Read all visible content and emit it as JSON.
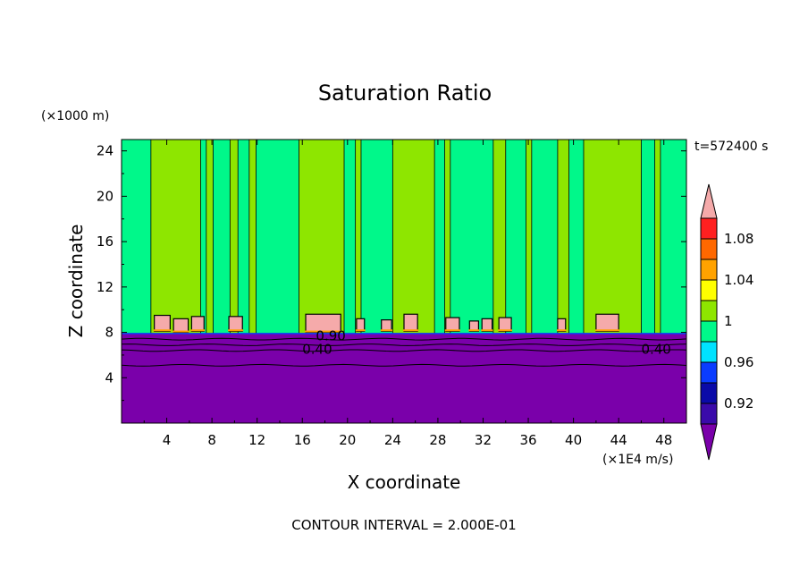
{
  "chart_data": {
    "type": "heatmap",
    "title": "Saturation Ratio",
    "xlabel": "X coordinate",
    "ylabel": "Z coordinate",
    "x_unit": "(×1E4 m/s)",
    "y_unit": "(×1000 m)",
    "time_label": "t=572400 s",
    "footer": "CONTOUR INTERVAL = 2.000E-01",
    "xlim": [
      0,
      50
    ],
    "ylim": [
      0,
      25
    ],
    "x_ticks": [
      "4",
      "8",
      "12",
      "16",
      "20",
      "24",
      "28",
      "32",
      "36",
      "40",
      "44",
      "48"
    ],
    "y_ticks": [
      "4",
      "8",
      "12",
      "16",
      "20",
      "24"
    ],
    "colorbar": {
      "levels": [
        0.92,
        0.94,
        0.96,
        0.98,
        1.0,
        1.02,
        1.04,
        1.06,
        1.08,
        1.1
      ],
      "labels": [
        "0.92",
        "0.96",
        "1",
        "1.04",
        "1.08"
      ],
      "label_values": [
        0.92,
        0.96,
        1.0,
        1.04,
        1.08
      ],
      "colors": [
        "#7a00aa",
        "#3a0aaa",
        "#0a0aa8",
        "#0a3cff",
        "#00e2ff",
        "#00f88a",
        "#8ee600",
        "#ffff00",
        "#ffa200",
        "#ff6800",
        "#ff2020",
        "#f5aaaa"
      ]
    },
    "contour_labels": [
      {
        "text": "0.90",
        "x": 17.2,
        "z": 7.7
      },
      {
        "text": "0.40",
        "x": 16.0,
        "z": 6.5
      },
      {
        "text": "0.40",
        "x": 46.0,
        "z": 6.5
      }
    ],
    "regions": {
      "lower_layer_top_z": 7.9,
      "lower_layer_color": "#7a00aa",
      "upper_background_color": "#00f88a",
      "columns_color": "#8ee600",
      "patch_color": "#f5aaaa",
      "contour_lines_z": [
        7.4,
        6.9,
        6.4,
        5.1
      ]
    },
    "columns": [
      {
        "x0": 2.6,
        "x1": 7.0
      },
      {
        "x0": 7.5,
        "x1": 8.1
      },
      {
        "x0": 9.6,
        "x1": 10.3
      },
      {
        "x0": 11.3,
        "x1": 11.9
      },
      {
        "x0": 15.7,
        "x1": 19.7
      },
      {
        "x0": 20.7,
        "x1": 21.2
      },
      {
        "x0": 24.0,
        "x1": 27.7
      },
      {
        "x0": 28.6,
        "x1": 29.1
      },
      {
        "x0": 32.9,
        "x1": 34.0
      },
      {
        "x0": 35.8,
        "x1": 36.3
      },
      {
        "x0": 38.6,
        "x1": 39.6
      },
      {
        "x0": 40.9,
        "x1": 46.0
      },
      {
        "x0": 47.2,
        "x1": 47.7
      }
    ],
    "patches": [
      {
        "x0": 2.9,
        "x1": 4.3,
        "z0": 8.1,
        "z1": 9.5
      },
      {
        "x0": 4.6,
        "x1": 5.9,
        "z0": 8.0,
        "z1": 9.2
      },
      {
        "x0": 6.2,
        "x1": 7.3,
        "z0": 8.1,
        "z1": 9.4
      },
      {
        "x0": 9.5,
        "x1": 10.7,
        "z0": 8.1,
        "z1": 9.4
      },
      {
        "x0": 16.3,
        "x1": 19.4,
        "z0": 8.0,
        "z1": 9.6
      },
      {
        "x0": 20.8,
        "x1": 21.5,
        "z0": 8.1,
        "z1": 9.2
      },
      {
        "x0": 23.0,
        "x1": 23.9,
        "z0": 8.1,
        "z1": 9.1
      },
      {
        "x0": 25.0,
        "x1": 26.2,
        "z0": 8.1,
        "z1": 9.6
      },
      {
        "x0": 28.7,
        "x1": 29.9,
        "z0": 8.1,
        "z1": 9.3
      },
      {
        "x0": 30.8,
        "x1": 31.6,
        "z0": 8.1,
        "z1": 9.0
      },
      {
        "x0": 31.9,
        "x1": 32.8,
        "z0": 8.1,
        "z1": 9.2
      },
      {
        "x0": 33.4,
        "x1": 34.5,
        "z0": 8.1,
        "z1": 9.3
      },
      {
        "x0": 38.6,
        "x1": 39.3,
        "z0": 8.1,
        "z1": 9.2
      },
      {
        "x0": 42.0,
        "x1": 44.0,
        "z0": 8.1,
        "z1": 9.6
      }
    ]
  }
}
